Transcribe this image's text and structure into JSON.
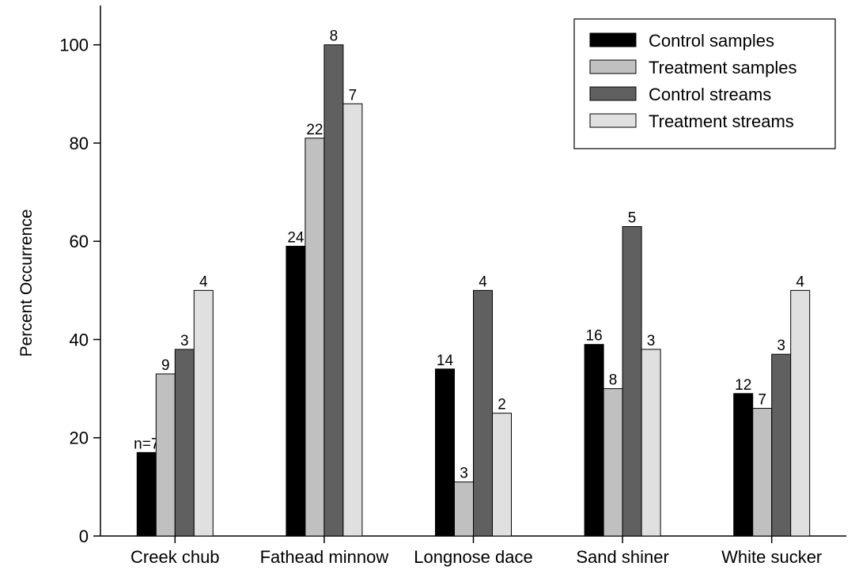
{
  "chart_data": {
    "type": "bar",
    "title": "",
    "xlabel": "",
    "ylabel": "Percent Occurrence",
    "ylim": [
      0,
      108
    ],
    "yticks": [
      0,
      20,
      40,
      60,
      80,
      100
    ],
    "grid": false,
    "legend_position": "top-right",
    "categories": [
      "Creek chub",
      "Fathead minnow",
      "Longnose dace",
      "Sand shiner",
      "White sucker"
    ],
    "series": [
      {
        "name": "Control samples",
        "color": "#000000",
        "values": [
          17,
          59,
          34,
          39,
          29
        ],
        "labels": [
          "n=7",
          "24",
          "14",
          "16",
          "12"
        ]
      },
      {
        "name": "Treatment samples",
        "color": "#c0c0c0",
        "values": [
          33,
          81,
          11,
          30,
          26
        ],
        "labels": [
          "9",
          "22",
          "3",
          "8",
          "7"
        ]
      },
      {
        "name": "Control streams",
        "color": "#606060",
        "values": [
          38,
          100,
          50,
          63,
          37
        ],
        "labels": [
          "3",
          "8",
          "4",
          "5",
          "3"
        ]
      },
      {
        "name": "Treatment streams",
        "color": "#e0e0e0",
        "values": [
          50,
          88,
          25,
          38,
          50
        ],
        "labels": [
          "4",
          "7",
          "2",
          "3",
          "4"
        ]
      }
    ]
  }
}
